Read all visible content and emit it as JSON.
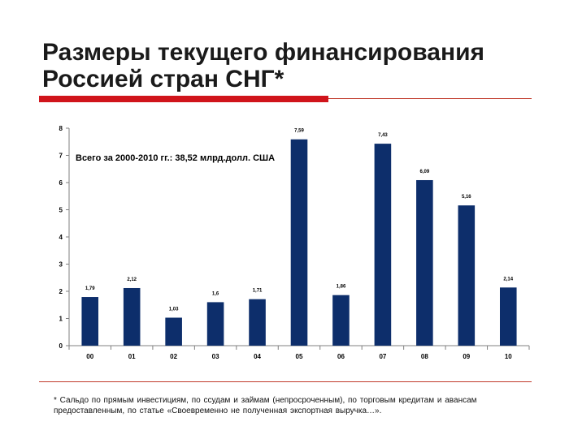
{
  "title": "Размеры текущего финансирования Россией стран СНГ*",
  "footnote": "* Сальдо по прямым инвестициям, по ссудам и займам (непросроченным), по торговым кредитам и авансам предоставленным, по статье «Своевременно не полученная экспортная выручка…».",
  "colors": {
    "bar": "#0d2e6b",
    "accent": "#d0141b"
  },
  "chart_data": {
    "type": "bar",
    "categories": [
      "00",
      "01",
      "02",
      "03",
      "04",
      "05",
      "06",
      "07",
      "08",
      "09",
      "10"
    ],
    "values": [
      1.79,
      2.12,
      1.03,
      1.6,
      1.71,
      7.59,
      1.86,
      7.43,
      6.09,
      5.16,
      2.14
    ],
    "data_labels": [
      "1,79",
      "2,12",
      "1,03",
      "1,6",
      "1,71",
      "7,59",
      "1,86",
      "7,43",
      "6,09",
      "5,16",
      "2,14"
    ],
    "annotation": "Всего за 2000-2010 гг.: 38,52 млрд.долл. США",
    "ylim": [
      0,
      8
    ],
    "yticks": [
      0,
      1,
      2,
      3,
      4,
      5,
      6,
      7,
      8
    ],
    "grid": false,
    "legend": "none"
  }
}
